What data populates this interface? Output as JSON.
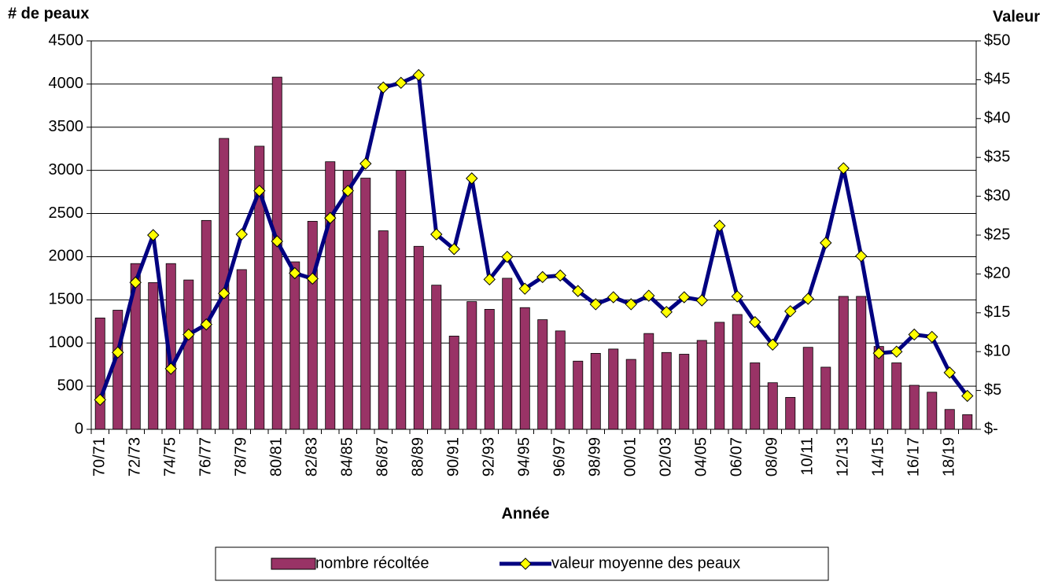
{
  "chart_data": {
    "type": "bar-line",
    "y_axis_title": "# de peaux",
    "y2_axis_title": "Valeur",
    "x_axis_title": "Année",
    "categories": [
      "70/71",
      null,
      "72/73",
      null,
      "74/75",
      null,
      "76/77",
      null,
      "78/79",
      null,
      "80/81",
      null,
      "82/83",
      null,
      "84/85",
      null,
      "86/87",
      null,
      "88/89",
      null,
      "90/91",
      null,
      "92/93",
      null,
      "94/95",
      null,
      "96/97",
      null,
      "98/99",
      null,
      "00/01",
      null,
      "02/03",
      null,
      "04/05",
      null,
      "06/07",
      null,
      "08/09",
      null,
      "10/11",
      null,
      "12/13",
      null,
      "14/15",
      null,
      "16/17",
      null,
      "18/19",
      null
    ],
    "series": [
      {
        "name": "nombre récoltée",
        "type": "bar",
        "color": "#993366",
        "values": [
          1290,
          1380,
          1920,
          1700,
          1920,
          1730,
          2420,
          3370,
          1850,
          3280,
          4080,
          1940,
          2410,
          3100,
          3000,
          2910,
          2300,
          3000,
          2120,
          1670,
          1080,
          1480,
          1390,
          1750,
          1410,
          1270,
          1140,
          790,
          880,
          930,
          810,
          1110,
          890,
          870,
          1030,
          1240,
          1330,
          770,
          540,
          370,
          950,
          720,
          1540,
          1540,
          960,
          770,
          510,
          430,
          230,
          170
        ]
      },
      {
        "name": "valeur moyenne des peaux",
        "type": "line",
        "axis": "y2",
        "color": "#000080",
        "marker_color": "#ffff00",
        "values": [
          3.8,
          9.9,
          18.9,
          25,
          7.8,
          12.2,
          13.5,
          17.5,
          25.1,
          30.7,
          24.2,
          20.1,
          19.4,
          27.2,
          30.7,
          34.2,
          44,
          44.6,
          45.6,
          25.1,
          23.2,
          32.3,
          19.3,
          22.2,
          18.1,
          19.6,
          19.8,
          17.8,
          16.1,
          17,
          16.1,
          17.2,
          15.1,
          17,
          16.6,
          26.2,
          17.1,
          13.8,
          10.9,
          15.2,
          16.8,
          24,
          33.6,
          22.3,
          9.8,
          10,
          12.2,
          11.9,
          7.3,
          4.3
        ]
      }
    ],
    "ylim": [
      0,
      4500
    ],
    "yticks": [
      0,
      500,
      1000,
      1500,
      2000,
      2500,
      3000,
      3500,
      4000,
      4500
    ],
    "y2lim": [
      0,
      50
    ],
    "y2ticks": [
      {
        "value": 0,
        "label": "$-"
      },
      {
        "value": 5,
        "label": "$5"
      },
      {
        "value": 10,
        "label": "$10"
      },
      {
        "value": 15,
        "label": "$15"
      },
      {
        "value": 20,
        "label": "$20"
      },
      {
        "value": 25,
        "label": "$25"
      },
      {
        "value": 30,
        "label": "$30"
      },
      {
        "value": 35,
        "label": "$35"
      },
      {
        "value": 40,
        "label": "$40"
      },
      {
        "value": 45,
        "label": "$45"
      },
      {
        "value": 50,
        "label": "$50"
      }
    ],
    "grid": true,
    "legend": "bottom"
  }
}
